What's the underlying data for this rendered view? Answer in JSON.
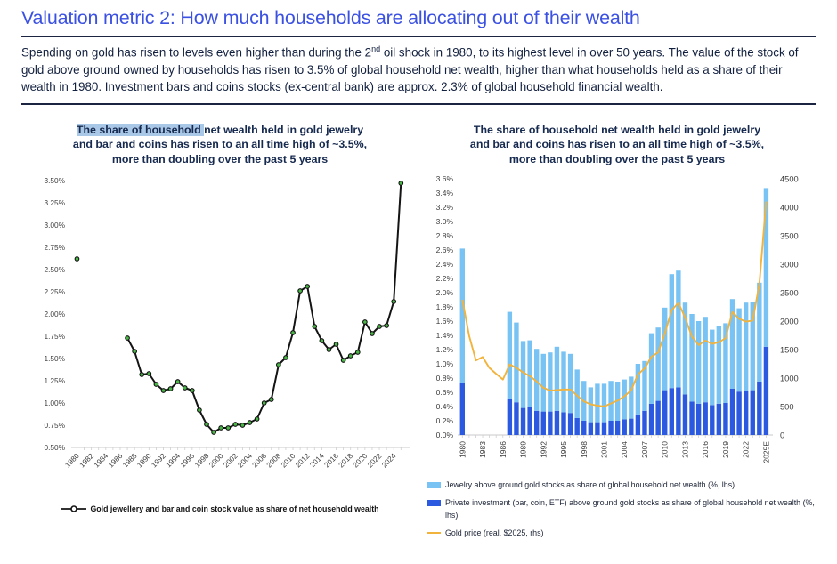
{
  "header": {
    "title": "Valuation metric 2: How much households are allocating out of their wealth"
  },
  "intro": {
    "part1": "Spending on gold has risen to levels even higher than during the 2",
    "sup": "nd",
    "part2": " oil shock in 1980, to its highest level in over 50 years. The value of the stock of gold above ground owned by households has risen to 3.5% of global household net wealth, higher than what households held as a share of their wealth in 1980. Investment bars and coins stocks (ex-central bank) are approx. 2.3% of global household financial wealth."
  },
  "colors": {
    "title_blue": "#3b51e2",
    "highlight": "#a9c7e7",
    "bar_light": "#79c3f4",
    "bar_dark": "#2b59e0",
    "gold_line": "#f2b33c",
    "marker_green": "#4bb648",
    "line_black": "#141414",
    "axis_text": "#3d3d3d",
    "axis_line": "#c8c8c8"
  },
  "charts": {
    "left": {
      "title_hl": "The share of household ",
      "title_l1_rest": "net wealth held in gold jewelry",
      "title_l2": "and bar and coins has risen to an all time high of ~3.5%,",
      "title_l3": "more than doubling over the past 5 years",
      "legend": "Gold jewellery and bar and coin stock value as share of net household wealth"
    },
    "right": {
      "title_l1": "The share of household net wealth held in gold jewelry",
      "title_l2": "and bar and coins has risen to an all time high of ~3.5%,",
      "title_l3": "more than doubling over the past 5 years",
      "legend": [
        "Jewelry above ground gold stocks as share of global household net wealth (%, lhs)",
        "Private investment (bar, coin, ETF) above ground gold stocks as share of global household net wealth (%, lhs)",
        "Gold price (real, $2025, rhs)"
      ]
    }
  },
  "chart_data": [
    {
      "type": "line",
      "title": "The share of household net wealth held in gold jewelry and bar and coins has risen to an all time high of ~3.5%, more than doubling over the past 5 years",
      "ylim": [
        0.5,
        3.5
      ],
      "y_ticks": [
        "0.50%",
        "0.75%",
        "1.00%",
        "1.25%",
        "1.50%",
        "1.75%",
        "2.00%",
        "2.25%",
        "2.50%",
        "2.75%",
        "3.00%",
        "3.25%",
        "3.50%"
      ],
      "x_tick_years": [
        1980,
        1982,
        1984,
        1986,
        1988,
        1990,
        1992,
        1994,
        1996,
        1998,
        2000,
        2002,
        2004,
        2006,
        2008,
        2010,
        2012,
        2014,
        2016,
        2018,
        2020,
        2022,
        2024
      ],
      "xlim": [
        1979.2,
        2026.2
      ],
      "grid": false,
      "legend_position": "bottom",
      "series_name": "Gold jewellery and bar and coin stock value as share of net household wealth",
      "years": [
        1980,
        1987,
        1988,
        1989,
        1990,
        1991,
        1992,
        1993,
        1994,
        1995,
        1996,
        1997,
        1998,
        1999,
        2000,
        2001,
        2002,
        2003,
        2004,
        2005,
        2006,
        2007,
        2008,
        2009,
        2010,
        2011,
        2012,
        2013,
        2014,
        2015,
        2016,
        2017,
        2018,
        2019,
        2020,
        2021,
        2022,
        2023,
        2024,
        2025
      ],
      "values": [
        2.62,
        1.73,
        1.58,
        1.32,
        1.33,
        1.21,
        1.14,
        1.16,
        1.24,
        1.17,
        1.14,
        0.92,
        0.76,
        0.67,
        0.72,
        0.72,
        0.76,
        0.75,
        0.78,
        0.82,
        1.0,
        1.04,
        1.43,
        1.51,
        1.79,
        2.26,
        2.31,
        1.86,
        1.7,
        1.6,
        1.66,
        1.48,
        1.53,
        1.57,
        1.91,
        1.78,
        1.86,
        1.87,
        2.14,
        3.47
      ]
    },
    {
      "type": "bar",
      "subtype": "stacked-bars-with-line",
      "title": "The share of household net wealth held in gold jewelry and bar and coins has risen to an all time high of ~3.5%, more than doubling over the past 5 years",
      "ylim_left": [
        0,
        3.6
      ],
      "ylim_right": [
        0,
        4500
      ],
      "y_ticks_left": [
        "0.0%",
        "0.2%",
        "0.4%",
        "0.6%",
        "0.8%",
        "1.0%",
        "1.2%",
        "1.4%",
        "1.6%",
        "1.8%",
        "2.0%",
        "2.2%",
        "2.4%",
        "2.6%",
        "2.8%",
        "3.0%",
        "3.2%",
        "3.4%",
        "3.6%"
      ],
      "y_ticks_right": [
        "0",
        "500",
        "1000",
        "1500",
        "2000",
        "2500",
        "3000",
        "3500",
        "4000",
        "4500"
      ],
      "x_tick_years": [
        1980,
        1983,
        1986,
        1989,
        1992,
        1995,
        1998,
        2001,
        2004,
        2007,
        2010,
        2013,
        2016,
        2019,
        2022,
        2025
      ],
      "x_tick_labels": [
        "1980",
        "1983",
        "1986",
        "1989",
        "1992",
        "1995",
        "1998",
        "2001",
        "2004",
        "2007",
        "2010",
        "2013",
        "2016",
        "2019",
        "2022",
        "2025E"
      ],
      "xlim": [
        1979.3,
        2026.0
      ],
      "grid": false,
      "legend_position": "bottom",
      "bar_years": [
        1980,
        1987,
        1988,
        1989,
        1990,
        1991,
        1992,
        1993,
        1994,
        1995,
        1996,
        1997,
        1998,
        1999,
        2000,
        2001,
        2002,
        2003,
        2004,
        2005,
        2006,
        2007,
        2008,
        2009,
        2010,
        2011,
        2012,
        2013,
        2014,
        2015,
        2016,
        2017,
        2018,
        2019,
        2020,
        2021,
        2022,
        2023,
        2024,
        2025
      ],
      "series": [
        {
          "name": "Jewelry above ground gold stocks as share of global household net wealth (%, lhs)",
          "axis": "left",
          "values": [
            1.89,
            1.22,
            1.12,
            0.94,
            0.94,
            0.87,
            0.81,
            0.83,
            0.9,
            0.85,
            0.83,
            0.68,
            0.56,
            0.49,
            0.54,
            0.54,
            0.56,
            0.55,
            0.56,
            0.59,
            0.71,
            0.7,
            0.99,
            1.03,
            1.16,
            1.6,
            1.64,
            1.29,
            1.23,
            1.16,
            1.2,
            1.06,
            1.09,
            1.12,
            1.26,
            1.17,
            1.24,
            1.24,
            1.39,
            2.23
          ]
        },
        {
          "name": "Private investment (bar, coin, ETF) above ground gold stocks as share of global household net wealth (%, lhs)",
          "axis": "left",
          "values": [
            0.73,
            0.51,
            0.46,
            0.38,
            0.39,
            0.34,
            0.33,
            0.33,
            0.34,
            0.32,
            0.31,
            0.24,
            0.2,
            0.18,
            0.18,
            0.18,
            0.2,
            0.2,
            0.22,
            0.23,
            0.29,
            0.34,
            0.44,
            0.48,
            0.63,
            0.66,
            0.67,
            0.57,
            0.47,
            0.44,
            0.46,
            0.42,
            0.44,
            0.45,
            0.65,
            0.61,
            0.62,
            0.63,
            0.75,
            1.24
          ]
        },
        {
          "name": "Gold price (real, $2025, rhs)",
          "axis": "right",
          "x": [
            1980,
            1981,
            1982,
            1983,
            1984,
            1985,
            1986,
            1987,
            1988,
            1989,
            1990,
            1991,
            1992,
            1993,
            1994,
            1995,
            1996,
            1997,
            1998,
            1999,
            2000,
            2001,
            2002,
            2003,
            2004,
            2005,
            2006,
            2007,
            2008,
            2009,
            2010,
            2011,
            2012,
            2013,
            2014,
            2015,
            2016,
            2017,
            2018,
            2019,
            2020,
            2021,
            2022,
            2023,
            2024,
            2025
          ],
          "values": [
            2375,
            1740,
            1310,
            1370,
            1180,
            1075,
            975,
            1240,
            1180,
            1100,
            1035,
            940,
            830,
            780,
            790,
            800,
            800,
            690,
            590,
            540,
            515,
            500,
            555,
            605,
            680,
            785,
            1065,
            1170,
            1375,
            1450,
            1785,
            2195,
            2320,
            2060,
            1730,
            1580,
            1660,
            1600,
            1630,
            1700,
            2160,
            2040,
            1990,
            2010,
            2650,
            4100
          ]
        }
      ]
    }
  ]
}
